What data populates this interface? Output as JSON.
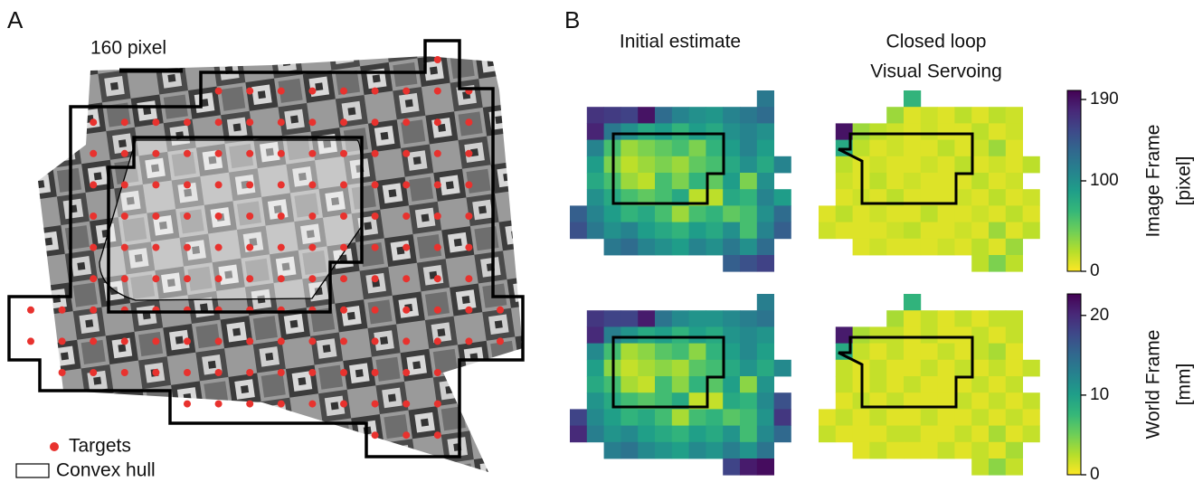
{
  "panel_a": {
    "label": "A",
    "scale_bar": "160 pixel",
    "legend": [
      "Targets",
      "Convex hull"
    ]
  },
  "panel_b": {
    "label": "B",
    "column_titles": [
      [
        "Initial estimate"
      ],
      [
        "Closed loop",
        "Visual Servoing"
      ]
    ],
    "colormap": [
      "#fde725",
      "#b5de2b",
      "#6ece58",
      "#35b779",
      "#1f9e89",
      "#26828e",
      "#31688e",
      "#3e4989",
      "#482878",
      "#440154"
    ],
    "rows": [
      {
        "colorbar_label": [
          "Image Frame",
          "[pixel]"
        ],
        "clim": [
          0,
          200
        ],
        "ticks": [
          0,
          100,
          190
        ],
        "grids": [
          [
            [
              null,
              null,
              null,
              null,
              null,
              null,
              null,
              null,
              null,
              null,
              null,
              120,
              null
            ],
            [
              null,
              170,
              165,
              160,
              190,
              130,
              110,
              100,
              95,
              110,
              120,
              130,
              null
            ],
            [
              null,
              180,
              120,
              100,
              80,
              90,
              70,
              90,
              80,
              100,
              110,
              100,
              null
            ],
            [
              null,
              110,
              60,
              30,
              40,
              50,
              60,
              40,
              70,
              90,
              110,
              90,
              null
            ],
            [
              null,
              90,
              40,
              20,
              30,
              40,
              30,
              50,
              60,
              80,
              100,
              80,
              110
            ],
            [
              null,
              80,
              60,
              30,
              20,
              60,
              40,
              70,
              50,
              90,
              40,
              100,
              null
            ],
            [
              null,
              100,
              80,
              60,
              50,
              60,
              80,
              20,
              20,
              80,
              70,
              110,
              90
            ],
            [
              140,
              110,
              90,
              70,
              80,
              60,
              30,
              60,
              70,
              50,
              60,
              100,
              130
            ],
            [
              150,
              120,
              100,
              110,
              90,
              80,
              70,
              90,
              80,
              100,
              60,
              110,
              140
            ],
            [
              null,
              null,
              120,
              130,
              110,
              100,
              90,
              110,
              100,
              120,
              100,
              130,
              null
            ],
            [
              null,
              null,
              null,
              null,
              null,
              null,
              null,
              null,
              null,
              140,
              150,
              160,
              null
            ]
          ],
          [
            [
              null,
              null,
              null,
              null,
              null,
              70,
              null,
              null,
              null,
              null,
              null,
              null,
              null
            ],
            [
              null,
              null,
              null,
              null,
              30,
              10,
              15,
              10,
              20,
              10,
              20,
              15,
              null
            ],
            [
              null,
              190,
              30,
              20,
              15,
              10,
              15,
              10,
              10,
              20,
              10,
              15,
              null
            ],
            [
              null,
              80,
              20,
              10,
              15,
              10,
              10,
              20,
              10,
              15,
              30,
              10,
              null
            ],
            [
              null,
              20,
              10,
              15,
              10,
              10,
              15,
              10,
              20,
              10,
              15,
              10,
              20
            ],
            [
              null,
              15,
              10,
              20,
              10,
              15,
              10,
              10,
              10,
              20,
              10,
              15,
              null
            ],
            [
              null,
              10,
              15,
              10,
              20,
              10,
              10,
              10,
              15,
              10,
              20,
              10,
              15
            ],
            [
              10,
              20,
              10,
              15,
              10,
              10,
              20,
              10,
              10,
              15,
              10,
              20,
              10
            ],
            [
              15,
              10,
              10,
              10,
              15,
              20,
              10,
              10,
              15,
              10,
              30,
              10,
              20
            ],
            [
              null,
              null,
              10,
              15,
              10,
              10,
              10,
              15,
              10,
              20,
              10,
              30,
              null
            ],
            [
              null,
              null,
              null,
              null,
              null,
              null,
              null,
              null,
              null,
              20,
              40,
              20,
              null
            ]
          ]
        ]
      },
      {
        "colorbar_label": [
          "World Frame",
          "[mm]"
        ],
        "clim": [
          0,
          22.7
        ],
        "ticks": [
          0,
          10,
          20
        ],
        "grids": [
          [
            [
              null,
              null,
              null,
              null,
              null,
              null,
              null,
              null,
              null,
              null,
              null,
              13,
              null
            ],
            [
              null,
              19,
              18,
              18,
              21,
              14,
              12,
              11,
              11,
              12,
              13,
              14,
              null
            ],
            [
              null,
              20,
              13,
              11,
              9,
              10,
              8,
              10,
              9,
              11,
              12,
              11,
              null
            ],
            [
              null,
              12,
              7,
              3,
              4,
              6,
              7,
              4,
              8,
              10,
              12,
              10,
              null
            ],
            [
              null,
              10,
              4,
              2,
              3,
              4,
              3,
              6,
              7,
              9,
              11,
              9,
              12
            ],
            [
              null,
              9,
              7,
              3,
              2,
              7,
              4,
              8,
              6,
              10,
              4,
              11,
              null
            ],
            [
              null,
              11,
              9,
              7,
              6,
              7,
              9,
              2,
              2,
              9,
              8,
              12,
              17
            ],
            [
              18,
              12,
              10,
              8,
              9,
              7,
              3,
              7,
              8,
              6,
              7,
              11,
              19
            ],
            [
              20,
              13,
              11,
              12,
              10,
              9,
              8,
              10,
              9,
              11,
              7,
              12,
              15
            ],
            [
              null,
              null,
              13,
              14,
              12,
              11,
              10,
              12,
              11,
              13,
              11,
              14,
              null
            ],
            [
              null,
              null,
              null,
              null,
              null,
              null,
              null,
              null,
              null,
              18,
              21,
              22,
              null
            ]
          ],
          [
            [
              null,
              null,
              null,
              null,
              null,
              8,
              null,
              null,
              null,
              null,
              null,
              null,
              null
            ],
            [
              null,
              null,
              null,
              null,
              3,
              1,
              2,
              1,
              2,
              1,
              2,
              2,
              null
            ],
            [
              null,
              21,
              3,
              2,
              2,
              1,
              2,
              1,
              1,
              2,
              1,
              2,
              null
            ],
            [
              null,
              9,
              2,
              1,
              2,
              1,
              1,
              2,
              1,
              2,
              3,
              1,
              null
            ],
            [
              null,
              2,
              1,
              2,
              1,
              1,
              2,
              1,
              2,
              1,
              2,
              1,
              2
            ],
            [
              null,
              2,
              1,
              2,
              1,
              2,
              1,
              1,
              1,
              2,
              1,
              2,
              null
            ],
            [
              null,
              1,
              2,
              1,
              2,
              1,
              1,
              1,
              2,
              1,
              2,
              1,
              2
            ],
            [
              1,
              2,
              1,
              2,
              1,
              1,
              2,
              1,
              1,
              2,
              1,
              2,
              1
            ],
            [
              2,
              1,
              1,
              1,
              2,
              2,
              1,
              1,
              2,
              1,
              3,
              1,
              2
            ],
            [
              null,
              null,
              1,
              2,
              1,
              1,
              1,
              2,
              1,
              2,
              1,
              3,
              null
            ],
            [
              null,
              null,
              null,
              null,
              null,
              null,
              null,
              null,
              null,
              2,
              4,
              2,
              null
            ]
          ]
        ]
      }
    ]
  }
}
